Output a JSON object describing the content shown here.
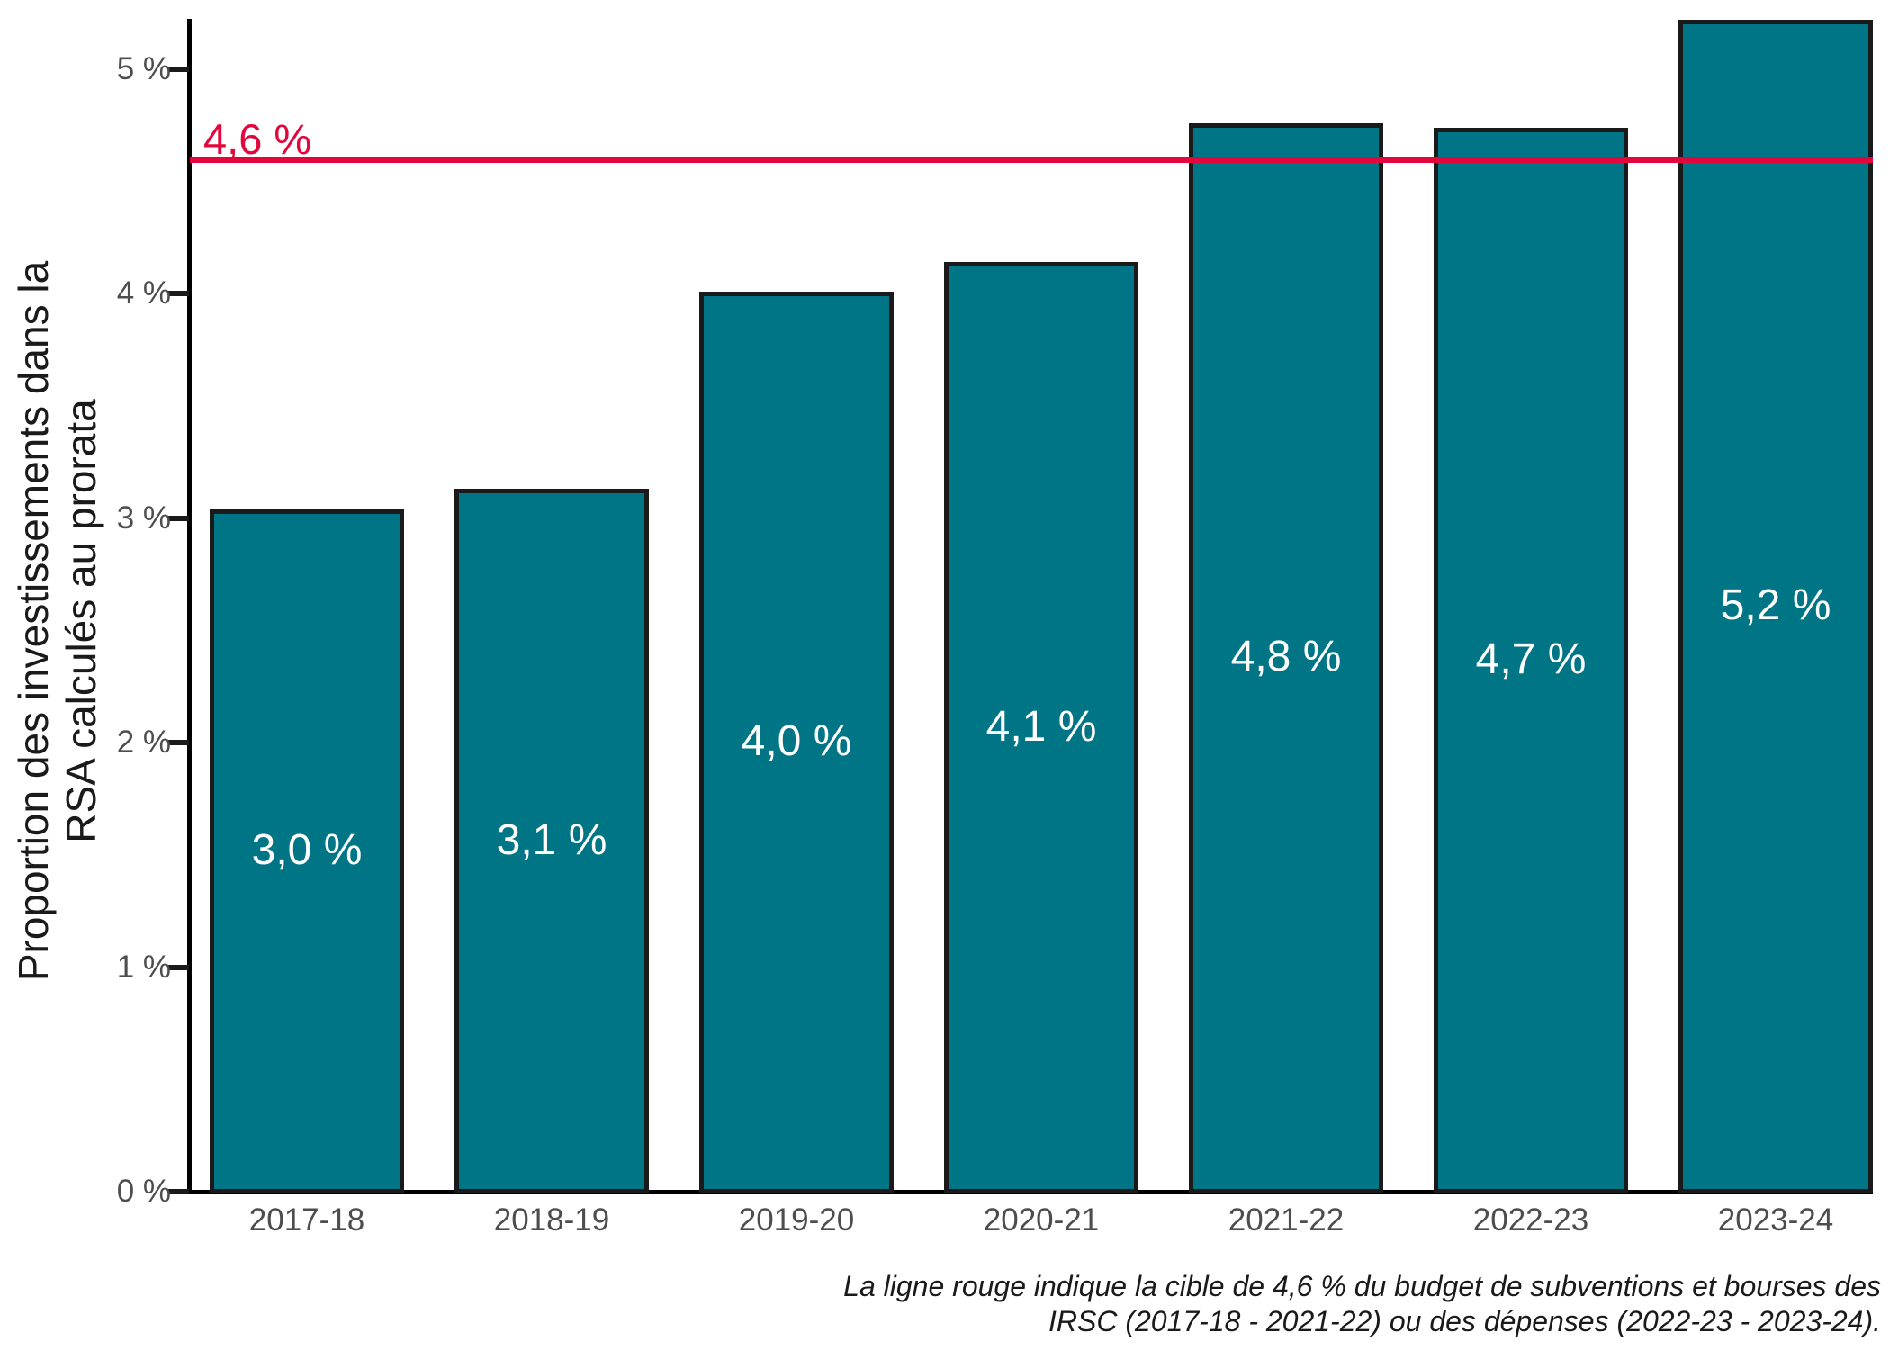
{
  "chart_data": {
    "type": "bar",
    "title": "",
    "xlabel": "",
    "ylabel_line1": "Proportion des investissements dans la",
    "ylabel_line2": "RSA calculés au prorata",
    "categories": [
      "2017-18",
      "2018-19",
      "2019-20",
      "2020-21",
      "2021-22",
      "2022-23",
      "2023-24"
    ],
    "values": [
      3.04,
      3.13,
      4.01,
      4.14,
      4.76,
      4.74,
      5.22
    ],
    "bar_value_labels": [
      "3,0 %",
      "3,1 %",
      "4,0 %",
      "4,1 %",
      "4,8 %",
      "4,7 %",
      "5,2 %"
    ],
    "ylim": [
      0,
      5.22
    ],
    "yticks": [
      0,
      1,
      2,
      3,
      4,
      5
    ],
    "ytick_labels": [
      "0 %",
      "1 %",
      "2 %",
      "3 %",
      "4 %",
      "5 %"
    ],
    "grid": "off",
    "legend": "none",
    "reference_line": {
      "value": 4.6,
      "label": "4,6 %"
    },
    "caption_line1": "La ligne rouge indique la cible de 4,6 % du budget de subventions et bourses des",
    "caption_line2": "IRSC (2017-18 - 2021-22) ou des dépenses (2022-23 - 2023-24).",
    "colors": {
      "bar_fill": "#007585",
      "bar_border": "#1a1a1a",
      "target_red": "#e2063c",
      "axis_label_gray": "#4d4d4d",
      "text_black": "#1a1a1a",
      "bar_label_white": "#ffffff"
    }
  }
}
